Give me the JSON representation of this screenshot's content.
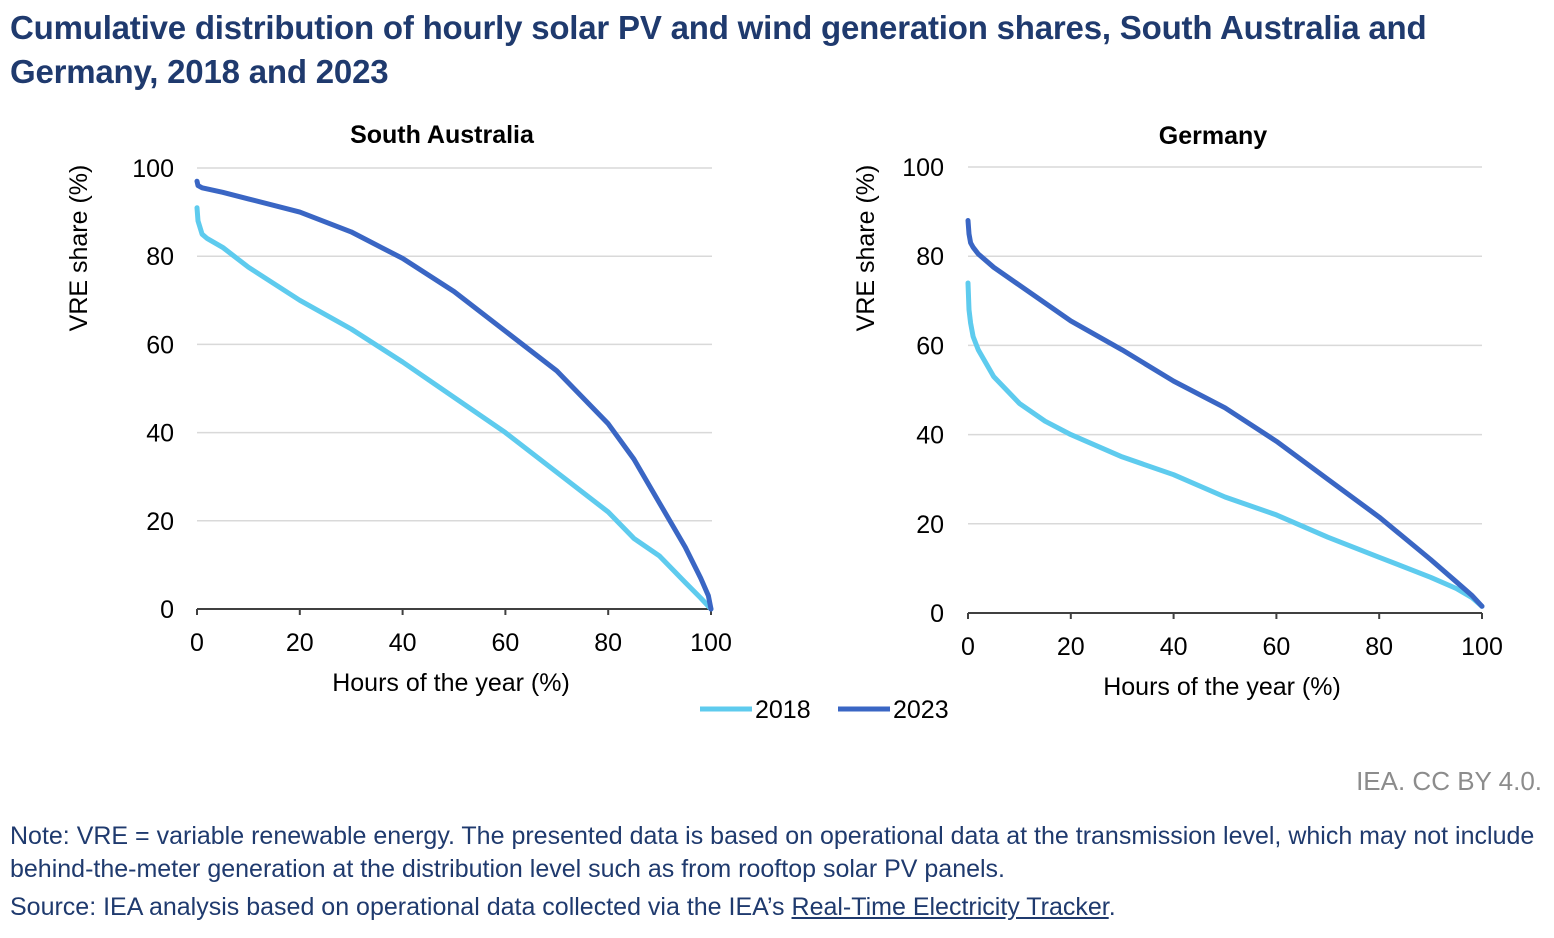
{
  "title": "Cumulative distribution of hourly solar PV and wind generation shares, South Australia and Germany, 2018 and 2023",
  "credit": "IEA. CC BY 4.0.",
  "note": "Note: VRE = variable renewable energy. The presented data is based on operational data at the transmission level, which may not include behind-the-meter generation at the distribution level such as from rooftop solar PV panels.",
  "source": {
    "prefix": "Source: IEA analysis based on operational data collected via the IEA’s ",
    "link_text": "Real-Time Electricity Tracker",
    "suffix": "."
  },
  "colors": {
    "series_2018": "#5ecbee",
    "series_2023": "#3a66c4",
    "grid": "#d9d9d9",
    "axis": "#404040",
    "text": "#000000"
  },
  "legend": [
    {
      "name": "2018",
      "color_key": "series_2018"
    },
    {
      "name": "2023",
      "color_key": "series_2023"
    }
  ],
  "chart_data": [
    {
      "type": "line",
      "title": "South Australia",
      "xlabel": "Hours of the year (%)",
      "ylabel": "VRE share (%)",
      "xlim": [
        0,
        100
      ],
      "ylim": [
        0,
        100
      ],
      "xticks": [
        0,
        20,
        40,
        60,
        80,
        100
      ],
      "yticks": [
        0,
        20,
        40,
        60,
        80,
        100
      ],
      "grid": "horizontal",
      "series": [
        {
          "name": "2018",
          "x": [
            0,
            0.2,
            1,
            2,
            5,
            10,
            20,
            30,
            40,
            50,
            60,
            70,
            80,
            85,
            90,
            95,
            98,
            100
          ],
          "values": [
            91,
            88,
            85,
            84,
            82,
            77.5,
            70,
            63.5,
            56,
            48,
            40,
            31,
            22,
            16,
            12,
            6,
            2.5,
            0
          ]
        },
        {
          "name": "2023",
          "x": [
            0,
            0.2,
            1,
            5,
            10,
            20,
            30,
            40,
            50,
            60,
            70,
            80,
            85,
            90,
            95,
            98,
            99.5,
            100
          ],
          "values": [
            97,
            96,
            95.5,
            94.5,
            93,
            90,
            85.5,
            79.5,
            72,
            63,
            54,
            42,
            34,
            24,
            14,
            7,
            3,
            0
          ]
        }
      ]
    },
    {
      "type": "line",
      "title": "Germany",
      "xlabel": "Hours of the year (%)",
      "ylabel": "VRE share (%)",
      "xlim": [
        0,
        100
      ],
      "ylim": [
        0,
        100
      ],
      "xticks": [
        0,
        20,
        40,
        60,
        80,
        100
      ],
      "yticks": [
        0,
        20,
        40,
        60,
        80,
        100
      ],
      "grid": "horizontal",
      "series": [
        {
          "name": "2018",
          "x": [
            0,
            0.2,
            0.5,
            1,
            2,
            5,
            10,
            15,
            20,
            30,
            40,
            50,
            60,
            70,
            80,
            90,
            95,
            98,
            100
          ],
          "values": [
            74,
            68,
            65,
            62,
            59,
            53,
            47,
            43,
            40,
            35,
            31,
            26,
            22,
            17,
            12.5,
            8,
            5.5,
            3.5,
            1.5
          ]
        },
        {
          "name": "2023",
          "x": [
            0,
            0.2,
            0.5,
            1,
            2,
            5,
            10,
            20,
            30,
            40,
            50,
            60,
            70,
            80,
            90,
            95,
            98,
            100
          ],
          "values": [
            88,
            85,
            83,
            82,
            80.5,
            77.5,
            73.5,
            65.5,
            59,
            52,
            46,
            38.5,
            30,
            21.5,
            12,
            7,
            4,
            1.5
          ]
        }
      ]
    }
  ]
}
